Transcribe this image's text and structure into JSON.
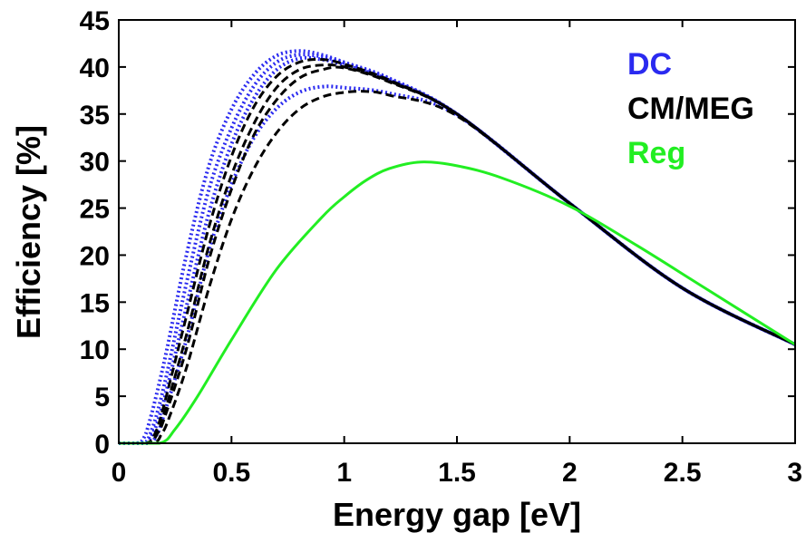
{
  "chart_data": {
    "type": "line",
    "title": "",
    "xlabel": "Energy gap [eV]",
    "ylabel": "Efficiency [%]",
    "xlim": [
      0,
      3
    ],
    "ylim": [
      0,
      45
    ],
    "x_ticks": [
      0,
      0.5,
      1,
      1.5,
      2,
      2.5,
      3
    ],
    "x_tick_labels": [
      "0",
      "0.5",
      "1",
      "1.5",
      "2",
      "2.5",
      "3"
    ],
    "y_ticks": [
      0,
      5,
      10,
      15,
      20,
      25,
      30,
      35,
      40,
      45
    ],
    "y_tick_labels": [
      "0",
      "5",
      "10",
      "15",
      "20",
      "25",
      "30",
      "35",
      "40",
      "45"
    ],
    "grid": false,
    "legend": {
      "placement": "top-right",
      "entries": [
        {
          "label": "DC",
          "color": "#2a2af0"
        },
        {
          "label": "CM/MEG",
          "color": "#000000"
        },
        {
          "label": "Reg",
          "color": "#22ee22"
        }
      ]
    },
    "series_groups": [
      {
        "group": "DC",
        "color": "#2a2af0",
        "style": "dotted",
        "curves": [
          {
            "peak": 41.7,
            "x": [
              0,
              0.08,
              0.12,
              0.2,
              0.3,
              0.4,
              0.5,
              0.6,
              0.7,
              0.8,
              0.9,
              1.0,
              1.2,
              1.5,
              2.0,
              2.5,
              3.0
            ],
            "y": [
              0,
              0,
              1,
              8.5,
              20,
              29.5,
              35.5,
              39.2,
              41.2,
              41.7,
              41.3,
              40.5,
              38.8,
              35,
              25.5,
              16.5,
              10.5
            ]
          },
          {
            "peak": 41.3,
            "x": [
              0,
              0.1,
              0.14,
              0.2,
              0.3,
              0.4,
              0.5,
              0.6,
              0.7,
              0.8,
              0.9,
              1.0,
              1.2,
              1.5,
              2.0,
              2.5,
              3.0
            ],
            "y": [
              0,
              0,
              1,
              6,
              17,
              27,
              33.5,
              38,
              40.5,
              41.3,
              41.1,
              40.4,
              38.7,
              35,
              25.5,
              16.5,
              10.5
            ]
          },
          {
            "peak": 40.9,
            "x": [
              0,
              0.11,
              0.15,
              0.2,
              0.3,
              0.4,
              0.5,
              0.6,
              0.7,
              0.8,
              0.9,
              1.0,
              1.2,
              1.5,
              2.0,
              2.5,
              3.0
            ],
            "y": [
              0,
              0,
              1,
              4.5,
              14.5,
              24.5,
              31.8,
              36.7,
              39.7,
              40.9,
              40.8,
              40.2,
              38.6,
              35,
              25.5,
              16.5,
              10.5
            ]
          },
          {
            "peak": 37.9,
            "x": [
              0,
              0.13,
              0.17,
              0.2,
              0.3,
              0.4,
              0.5,
              0.6,
              0.7,
              0.8,
              0.9,
              1.0,
              1.2,
              1.5,
              2.0,
              2.5,
              3.0
            ],
            "y": [
              0,
              0,
              1,
              3,
              11,
              20.5,
              27.5,
              32.5,
              35.6,
              37.3,
              37.9,
              37.8,
              37.2,
              34.9,
              25.5,
              16.5,
              10.5
            ]
          }
        ]
      },
      {
        "group": "CM/MEG",
        "color": "#000000",
        "style": "dashed",
        "curves": [
          {
            "peak": 40.8,
            "x": [
              0,
              0.12,
              0.16,
              0.2,
              0.3,
              0.4,
              0.5,
              0.6,
              0.7,
              0.8,
              0.9,
              1.0,
              1.2,
              1.5,
              2.0,
              2.5,
              3.0
            ],
            "y": [
              0,
              0,
              1,
              4,
              13.5,
              23,
              30.5,
              35.8,
              39,
              40.5,
              40.8,
              40.3,
              38.6,
              35,
              25.5,
              16.5,
              10.5
            ]
          },
          {
            "peak": 40.2,
            "x": [
              0,
              0.13,
              0.17,
              0.2,
              0.3,
              0.4,
              0.5,
              0.6,
              0.7,
              0.8,
              0.9,
              1.0,
              1.2,
              1.5,
              2.0,
              2.5,
              3.0
            ],
            "y": [
              0,
              0,
              1,
              3,
              11.5,
              21,
              28.5,
              34,
              37.8,
              39.7,
              40.2,
              40,
              38.5,
              35,
              25.5,
              16.5,
              10.5
            ]
          },
          {
            "peak": 39.9,
            "x": [
              0,
              0.13,
              0.17,
              0.2,
              0.3,
              0.4,
              0.5,
              0.6,
              0.7,
              0.8,
              0.9,
              1.0,
              1.2,
              1.5,
              2.0,
              2.5,
              3.0
            ],
            "y": [
              0,
              0,
              1,
              2.5,
              10,
              19.5,
              27,
              32.8,
              36.5,
              38.8,
              39.7,
              39.9,
              38.4,
              35,
              25.5,
              16.5,
              10.5
            ]
          },
          {
            "peak": 37.4,
            "x": [
              0,
              0.15,
              0.19,
              0.22,
              0.3,
              0.4,
              0.5,
              0.6,
              0.7,
              0.8,
              0.9,
              1.0,
              1.1,
              1.2,
              1.5,
              2.0,
              2.5,
              3.0
            ],
            "y": [
              0,
              0,
              1,
              2.5,
              8,
              16.5,
              23.8,
              29.2,
              33,
              35.5,
              36.8,
              37.3,
              37.4,
              37,
              34.8,
              25.5,
              16.5,
              10.5
            ]
          }
        ]
      },
      {
        "group": "Reg",
        "color": "#22ee22",
        "style": "solid",
        "curves": [
          {
            "peak": 29.9,
            "x": [
              0,
              0.18,
              0.25,
              0.35,
              0.5,
              0.7,
              0.9,
              1.0,
              1.1,
              1.2,
              1.34,
              1.5,
              1.7,
              2.0,
              2.3,
              2.6,
              3.0
            ],
            "y": [
              0,
              0,
              1.5,
              5,
              11,
              18.5,
              24,
              26.2,
              28,
              29.2,
              29.9,
              29.5,
              28.2,
              25.2,
              21,
              16.5,
              10.5
            ]
          }
        ]
      }
    ]
  }
}
